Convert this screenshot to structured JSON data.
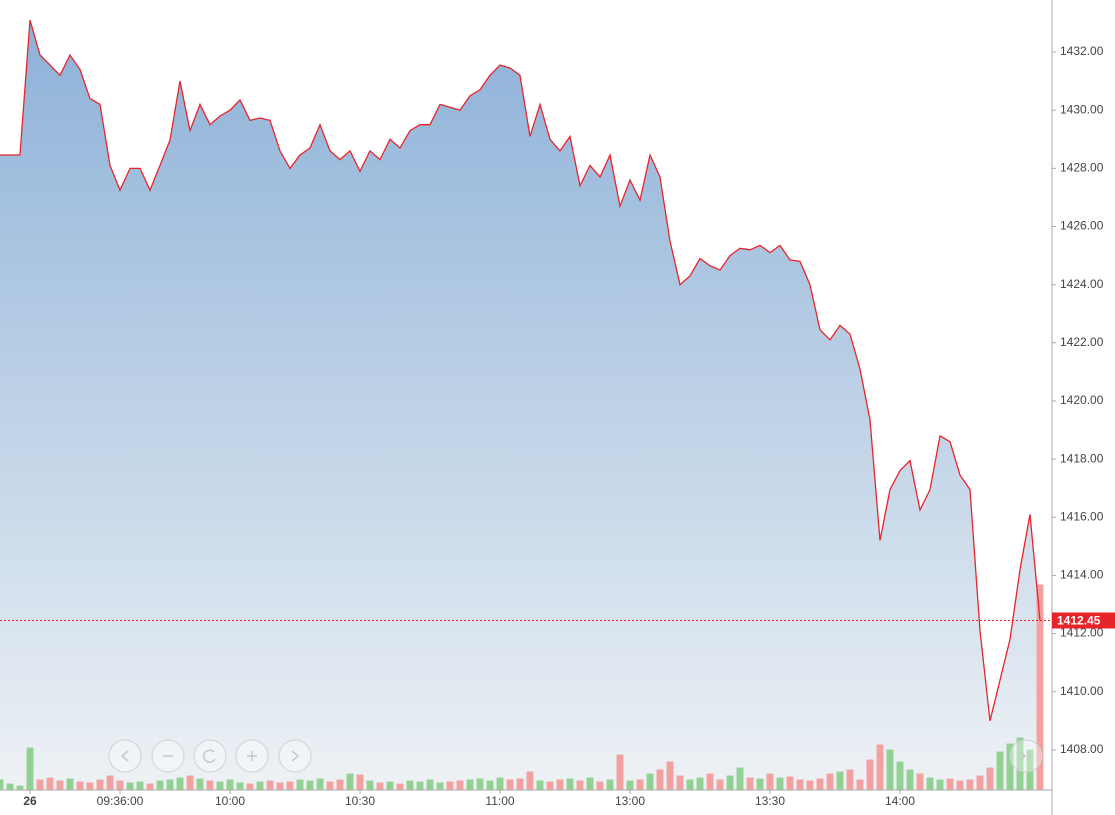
{
  "chart_data": {
    "type": "area",
    "categories": [
      null,
      null,
      null,
      "26",
      null,
      null,
      null,
      null,
      null,
      null,
      null,
      null,
      "09:36:00",
      null,
      null,
      null,
      null,
      null,
      null,
      null,
      null,
      null,
      null,
      "10:00",
      null,
      null,
      null,
      null,
      null,
      null,
      null,
      null,
      null,
      null,
      null,
      null,
      "10:30",
      null,
      null,
      null,
      null,
      null,
      null,
      null,
      null,
      null,
      null,
      null,
      null,
      null,
      "11:00",
      null,
      null,
      null,
      null,
      null,
      null,
      null,
      null,
      null,
      null,
      null,
      null,
      "13:00",
      null,
      null,
      null,
      null,
      null,
      null,
      null,
      null,
      null,
      null,
      null,
      null,
      null,
      "13:30",
      null,
      null,
      null,
      null,
      null,
      null,
      null,
      null,
      null,
      null,
      null,
      null,
      "14:00",
      null,
      null,
      null,
      null,
      null,
      null,
      null,
      null,
      null,
      null,
      null,
      null,
      null,
      null
    ],
    "values": [
      1428.46,
      1428.46,
      1428.46,
      1433.1,
      1431.9,
      1431.55,
      1431.2,
      1431.9,
      1431.4,
      1430.4,
      1430.2,
      1428.1,
      1427.25,
      1428.0,
      1428.0,
      1427.25,
      1428.1,
      1428.97,
      1431.0,
      1429.3,
      1430.2,
      1429.5,
      1429.8,
      1430.0,
      1430.35,
      1429.65,
      1429.73,
      1429.65,
      1428.6,
      1428.0,
      1428.46,
      1428.7,
      1429.5,
      1428.6,
      1428.3,
      1428.6,
      1427.9,
      1428.6,
      1428.3,
      1429.0,
      1428.7,
      1429.3,
      1429.5,
      1429.5,
      1430.2,
      1430.1,
      1430.0,
      1430.5,
      1430.7,
      1431.2,
      1431.55,
      1431.45,
      1431.2,
      1429.1,
      1430.2,
      1429.0,
      1428.6,
      1429.1,
      1427.4,
      1428.1,
      1427.7,
      1428.46,
      1426.7,
      1427.6,
      1426.9,
      1428.46,
      1427.7,
      1425.5,
      1424.0,
      1424.3,
      1424.9,
      1424.65,
      1424.5,
      1425.0,
      1425.25,
      1425.2,
      1425.35,
      1425.1,
      1425.35,
      1424.85,
      1424.8,
      1424.0,
      1422.45,
      1422.1,
      1422.6,
      1422.3,
      1421.1,
      1419.35,
      1415.2,
      1416.95,
      1417.6,
      1417.95,
      1416.25,
      1416.95,
      1418.8,
      1418.6,
      1417.45,
      1416.95,
      1412.1,
      1409.0,
      1410.4,
      1411.8,
      1414.2,
      1416.1,
      1412.45
    ],
    "volume": [
      10,
      6,
      4,
      42,
      10,
      12,
      9,
      11,
      8,
      7,
      10,
      14,
      9,
      7,
      8,
      6,
      9,
      10,
      12,
      14,
      11,
      9,
      8,
      10,
      7,
      6,
      8,
      9,
      7,
      8,
      10,
      9,
      11,
      8,
      10,
      16,
      15,
      9,
      7,
      8,
      6,
      9,
      8,
      10,
      7,
      8,
      9,
      10,
      11,
      9,
      12,
      10,
      11,
      18,
      9,
      8,
      10,
      11,
      9,
      12,
      8,
      10,
      35,
      9,
      10,
      16,
      20,
      28,
      14,
      10,
      12,
      16,
      10,
      14,
      22,
      12,
      11,
      16,
      12,
      13,
      10,
      9,
      11,
      16,
      18,
      20,
      10,
      30,
      45,
      40,
      28,
      20,
      16,
      12,
      10,
      11,
      9,
      10,
      14,
      22,
      38,
      46,
      52,
      40,
      205
    ],
    "color": "#e8242b",
    "fill_top": "#8db1d8",
    "fill_bottom": "#eef2f5",
    "up_color": "#93d093",
    "down_color": "#f2a0a0",
    "ylim": [
      1406.62,
      1433.79
    ],
    "yticks": [
      {
        "value": 1408,
        "label": "1408.00"
      },
      {
        "value": 1410,
        "label": "1410.00"
      },
      {
        "value": 1412,
        "label": "1412.00"
      },
      {
        "value": 1414,
        "label": "1414.00"
      },
      {
        "value": 1416,
        "label": "1416.00"
      },
      {
        "value": 1418,
        "label": "1418.00"
      },
      {
        "value": 1420,
        "label": "1420.00"
      },
      {
        "value": 1422,
        "label": "1422.00"
      },
      {
        "value": 1424,
        "label": "1424.00"
      },
      {
        "value": 1426,
        "label": "1426.00"
      },
      {
        "value": 1428,
        "label": "1428.00"
      },
      {
        "value": 1430,
        "label": "1430.00"
      },
      {
        "value": 1432,
        "label": "1432.00"
      }
    ],
    "y2lim": [
      0,
      790
    ],
    "last_price": 1412.45
  }
}
